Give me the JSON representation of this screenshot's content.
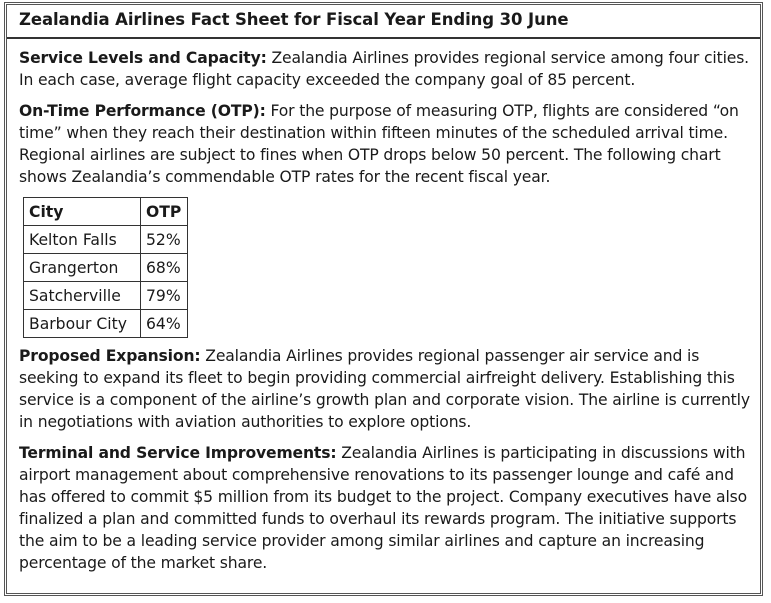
{
  "title": "Zealandia Airlines Fact Sheet for Fiscal Year Ending 30 June",
  "sections": {
    "service": {
      "heading": "Service Levels and Capacity:",
      "text": "Zealandia Airlines provides regional service among four cities. In each case, average flight capacity exceeded the company goal of 85 percent."
    },
    "otp": {
      "heading": "On-Time Performance (OTP):",
      "text": "For the purpose of measuring OTP, flights are considered “on time” when they reach their destination within fifteen minutes of the scheduled arrival time. Regional airlines are subject to fines when OTP drops below 50 percent. The following chart shows Zealandia’s commendable OTP rates for the recent fiscal year."
    },
    "expansion": {
      "heading": "Proposed Expansion:",
      "text": "Zealandia Airlines provides regional passenger air service and is seeking to expand its fleet to begin providing commercial airfreight delivery. Establishing this service is a component of the airline’s growth plan and corporate vision. The airline is currently in negotiations with aviation authorities to explore options."
    },
    "terminal": {
      "heading": "Terminal and Service Improvements:",
      "text": "Zealandia Airlines is participating in discussions with airport management about comprehensive renovations to its passenger lounge and café and has offered to commit $5 million from its budget to the project. Company executives have also finalized a plan and committed funds to overhaul its rewards program. The initiative supports the aim to be a leading service provider among similar airlines and capture an increasing percentage of the market share."
    }
  },
  "otp_table": {
    "headers": [
      "City",
      "OTP"
    ],
    "rows": [
      [
        "Kelton Falls",
        "52%"
      ],
      [
        "Grangerton",
        "68%"
      ],
      [
        "Satcherville",
        "79%"
      ],
      [
        "Barbour City",
        "64%"
      ]
    ]
  }
}
